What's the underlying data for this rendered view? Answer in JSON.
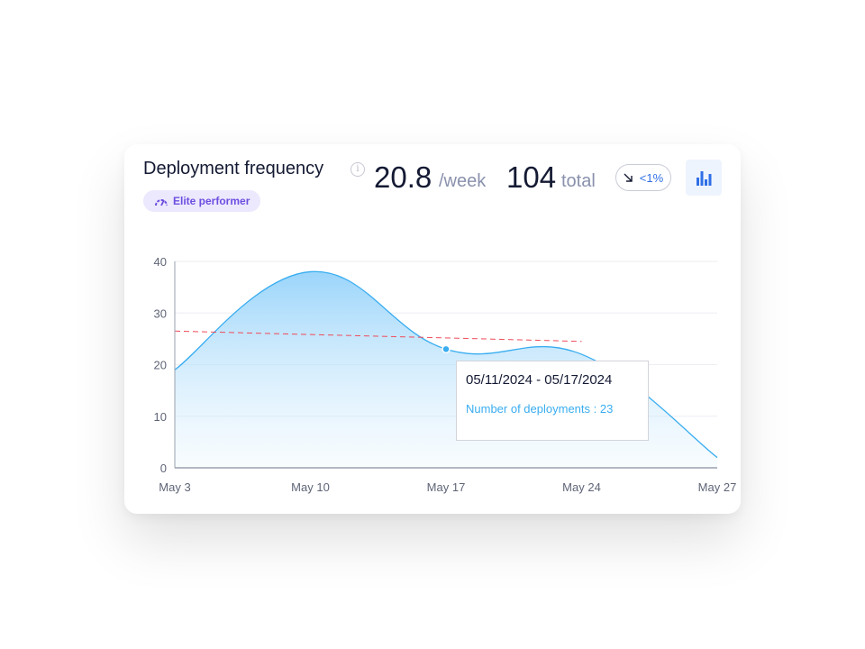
{
  "header": {
    "title": "Deployment frequency",
    "info_icon": "info-icon",
    "badge": {
      "label": "Elite performer",
      "icon": "gauge-icon"
    },
    "per_week_value": "20.8",
    "per_week_unit": "/week",
    "total_value": "104",
    "total_unit": "total",
    "trend": {
      "icon": "arrow-down-right-icon",
      "label": "<1%"
    },
    "chart_toggle_icon": "bar-chart-icon"
  },
  "colors": {
    "line": "#39adf0",
    "trend_line": "#ef4b5b",
    "badge_bg": "#ece8fd",
    "badge_text": "#6d4fe0",
    "accent": "#2f6fe6"
  },
  "chart_data": {
    "type": "area",
    "categories": [
      "May 3",
      "May 10",
      "May 17",
      "May 24",
      "May 27"
    ],
    "values": [
      19,
      38,
      23,
      22,
      2
    ],
    "trend_line": {
      "from": [
        "May 3",
        26.5
      ],
      "to": [
        "May 24",
        24.5
      ],
      "style": "dashed"
    },
    "yticks": [
      0,
      10,
      20,
      30,
      40
    ],
    "ylim": [
      0,
      40
    ],
    "grid": true,
    "highlighted_point": "May 17",
    "tooltip": {
      "date_range": "05/11/2024 - 05/17/2024",
      "label": "Number of deployments : 23"
    }
  }
}
